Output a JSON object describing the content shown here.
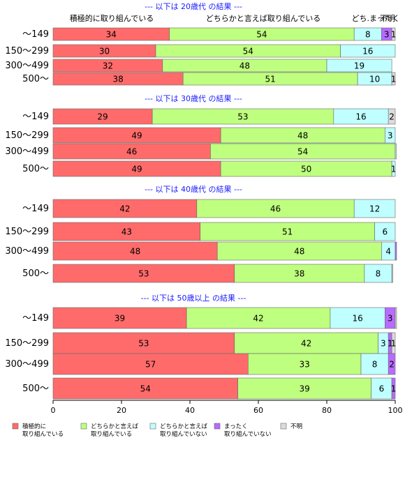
{
  "chart_data": {
    "type": "bar",
    "orientation": "horizontal",
    "stacked": true,
    "xlim": [
      0,
      100
    ],
    "x_ticks": [
      "0",
      "20",
      "40",
      "60",
      "80",
      "100"
    ],
    "grid": false,
    "legend_position": "bottom",
    "series_names": [
      "積極的に取り組んでいる",
      "どちらかと言えば取り組んでいる",
      "どちらかと言えば取り組んでいない",
      "まったく取り組んでいない",
      "不明"
    ],
    "series_colors": [
      "#ff6b6b",
      "#bfff7f",
      "#bfffff",
      "#b86bff",
      "#dcdcdc"
    ],
    "column_headers": [
      "積極的に取り組んでいる",
      "どちらかと言えば取り組んでいる",
      "どち.まったく",
      "不明"
    ],
    "groups": [
      {
        "title": "--- 以下は 20歳代 の結果 ---",
        "categories": [
          "～149",
          "150～299",
          "300～499",
          "500～"
        ],
        "values": [
          [
            34,
            54,
            8,
            3,
            1
          ],
          [
            30,
            54,
            16,
            0,
            0
          ],
          [
            32,
            48,
            19,
            0,
            0
          ],
          [
            38,
            51,
            10,
            0,
            1
          ]
        ],
        "labels": [
          [
            "34",
            "54",
            "8",
            "3",
            "1"
          ],
          [
            "30",
            "54",
            "16",
            "",
            ""
          ],
          [
            "32",
            "48",
            "19",
            "",
            ""
          ],
          [
            "38",
            "51",
            "10",
            "",
            "1"
          ]
        ]
      },
      {
        "title": "--- 以下は 30歳代 の結果 ---",
        "categories": [
          "～149",
          "150～299",
          "300～499",
          "500～"
        ],
        "values": [
          [
            29,
            53,
            16,
            0,
            2
          ],
          [
            49,
            48,
            3,
            0,
            0
          ],
          [
            46,
            54,
            0.3,
            0,
            0
          ],
          [
            49,
            50,
            1,
            0,
            0
          ]
        ],
        "labels": [
          [
            "29",
            "53",
            "16",
            "",
            "2"
          ],
          [
            "49",
            "48",
            "3",
            "",
            ""
          ],
          [
            "46",
            "54",
            "",
            "",
            ""
          ],
          [
            "49",
            "50",
            "1",
            "",
            ""
          ]
        ]
      },
      {
        "title": "--- 以下は 40歳代 の結果 ---",
        "categories": [
          "～149",
          "150～299",
          "300～499",
          "500～"
        ],
        "values": [
          [
            42,
            46,
            12,
            0,
            0
          ],
          [
            43,
            51,
            6,
            0,
            0
          ],
          [
            48,
            48,
            4,
            0.4,
            0
          ],
          [
            53,
            38,
            8,
            0,
            0.3
          ]
        ],
        "labels": [
          [
            "42",
            "46",
            "12",
            "",
            ""
          ],
          [
            "43",
            "51",
            "6",
            "",
            ""
          ],
          [
            "48",
            "48",
            "4",
            "",
            ""
          ],
          [
            "53",
            "38",
            "8",
            "",
            ""
          ]
        ]
      },
      {
        "title": "--- 以下は 50歳以上 の結果 ---",
        "categories": [
          "～149",
          "150～299",
          "300～499",
          "500～"
        ],
        "values": [
          [
            39,
            42,
            16,
            3,
            0.4
          ],
          [
            53,
            42,
            3,
            1,
            1
          ],
          [
            57,
            33,
            8,
            2,
            0
          ],
          [
            54,
            39,
            6,
            1,
            0
          ]
        ],
        "labels": [
          [
            "39",
            "42",
            "16",
            "3",
            ""
          ],
          [
            "53",
            "42",
            "3",
            "1",
            "1"
          ],
          [
            "57",
            "33",
            "8",
            "2",
            ""
          ],
          [
            "54",
            "39",
            "6",
            "1",
            ""
          ]
        ]
      }
    ]
  },
  "legend": {
    "items": [
      {
        "line1": "積極的に",
        "line2": "取り組んでいる",
        "color": "#ff6b6b"
      },
      {
        "line1": "どちらかと言えば",
        "line2": "取り組んでいる",
        "color": "#bfff7f"
      },
      {
        "line1": "どちらかと言えば",
        "line2": "取り組んでいない",
        "color": "#bfffff"
      },
      {
        "line1": "まったく",
        "line2": "取り組んでいない",
        "color": "#b86bff"
      },
      {
        "line1": "不明",
        "line2": "",
        "color": "#dcdcdc"
      }
    ]
  }
}
